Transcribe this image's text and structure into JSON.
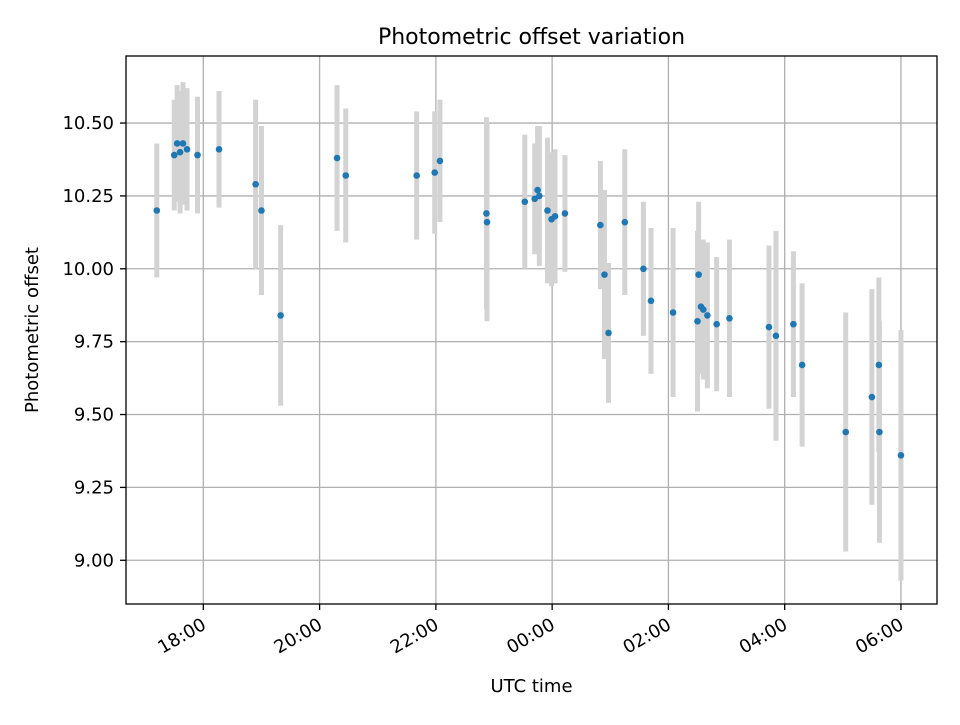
{
  "chart_data": {
    "type": "scatter",
    "title": "Photometric offset variation",
    "xlabel": "UTC time",
    "ylabel": "Photometric offset",
    "x_tick_labels": [
      "18:00",
      "20:00",
      "22:00",
      "00:00",
      "02:00",
      "04:00",
      "06:00"
    ],
    "y_tick_labels": [
      "9.00",
      "9.25",
      "9.50",
      "9.75",
      "10.00",
      "10.25",
      "10.50"
    ],
    "y_ticks": [
      9.0,
      9.25,
      9.5,
      9.75,
      10.0,
      10.25,
      10.5
    ],
    "ylim": [
      8.85,
      10.73
    ],
    "x_ticks": [
      18,
      20,
      22,
      24,
      26,
      28,
      30
    ],
    "xlim": [
      16.67,
      30.62
    ],
    "grid": true,
    "colors": {
      "point": "#1f77b4",
      "errorbar": "#d3d3d3",
      "grid": "#b0b0b0",
      "axes": "#000000"
    },
    "series": [
      {
        "x": [
          17.2,
          17.5,
          17.55,
          17.6,
          17.65,
          17.72,
          17.9,
          18.27,
          18.9,
          19.0,
          19.33,
          20.3,
          20.45,
          21.67,
          21.98,
          22.07,
          22.87,
          22.88,
          23.53,
          23.7,
          23.75,
          23.78,
          23.92,
          23.99,
          24.05,
          24.22,
          24.83,
          24.9,
          24.97,
          25.25,
          25.57,
          25.7,
          26.08,
          26.5,
          26.52,
          26.56,
          26.6,
          26.67,
          26.83,
          27.05,
          27.73,
          27.85,
          28.15,
          28.3,
          29.05,
          29.5,
          29.62,
          29.63,
          30.0
        ],
        "y": [
          10.2,
          10.39,
          10.43,
          10.4,
          10.43,
          10.41,
          10.39,
          10.41,
          10.29,
          10.2,
          9.84,
          10.38,
          10.32,
          10.32,
          10.33,
          10.37,
          10.19,
          10.16,
          10.23,
          10.24,
          10.27,
          10.25,
          10.2,
          10.17,
          10.18,
          10.19,
          10.15,
          9.98,
          9.78,
          10.16,
          10.0,
          9.89,
          9.85,
          9.82,
          9.98,
          9.87,
          9.86,
          9.84,
          9.81,
          9.83,
          9.8,
          9.77,
          9.81,
          9.67,
          9.44,
          9.56,
          9.67,
          9.44,
          9.36
        ],
        "err": [
          0.23,
          0.19,
          0.2,
          0.21,
          0.21,
          0.21,
          0.2,
          0.2,
          0.29,
          0.29,
          0.31,
          0.25,
          0.23,
          0.22,
          0.21,
          0.21,
          0.33,
          0.34,
          0.23,
          0.19,
          0.22,
          0.24,
          0.25,
          0.23,
          0.23,
          0.2,
          0.22,
          0.29,
          0.24,
          0.25,
          0.23,
          0.25,
          0.29,
          0.31,
          0.25,
          0.23,
          0.24,
          0.25,
          0.23,
          0.27,
          0.28,
          0.36,
          0.25,
          0.28,
          0.41,
          0.37,
          0.3,
          0.38,
          0.43
        ]
      }
    ]
  }
}
